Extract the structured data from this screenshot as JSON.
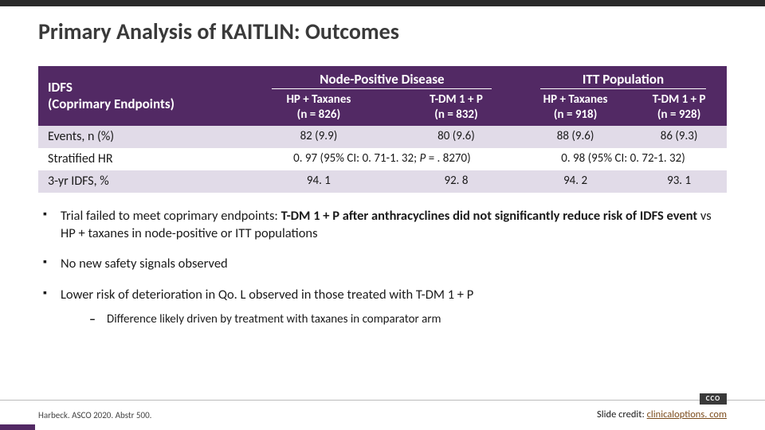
{
  "colors": {
    "header_bg": "#522964",
    "header_text": "#ffffff",
    "row_even_bg": "#e1dbe8",
    "row_odd_bg": "#ffffff",
    "top_bar": "#2a2a2a",
    "link": "#7a4a1a"
  },
  "title": "Primary Analysis of KAITLIN: Outcomes",
  "table": {
    "row_header_line1": "IDFS",
    "row_header_line2": "(Coprimary Endpoints)",
    "group1": "Node-Positive Disease",
    "group2": "ITT Population",
    "col1_line1": "HP + Taxanes",
    "col1_line2": "(n = 826)",
    "col2_line1": "T-DM 1 + P",
    "col2_line2": "(n = 832)",
    "col3_line1": "HP + Taxanes",
    "col3_line2": "(n = 918)",
    "col4_line1": "T-DM 1 + P",
    "col4_line2": "(n = 928)",
    "rows": {
      "r1": {
        "label": "Events, n (%)",
        "c1": "82 (9.9)",
        "c2": "80 (9.6)",
        "c3": "88 (9.6)",
        "c4": "86 (9.3)"
      },
      "r2": {
        "label": "Stratified HR",
        "span12_pre": "0. 97 (95% CI: 0. 71-1. 32; ",
        "span12_p": "P",
        "span12_post": " = . 8270)",
        "span34": "0. 98 (95% CI: 0. 72-1. 32)"
      },
      "r3": {
        "label": "3-yr IDFS, %",
        "c1": "94. 1",
        "c2": "92. 8",
        "c3": "94. 2",
        "c4": "93. 1"
      }
    }
  },
  "bullets": {
    "b1_pre": "Trial failed to meet coprimary endpoints: ",
    "b1_bold": "T-DM 1 + P after anthracyclines did not significantly reduce risk of IDFS event ",
    "b1_post": "vs HP + taxanes in node-positive or ITT populations",
    "b2": "No new safety signals observed",
    "b3": "Lower risk of deterioration in Qo. L observed in those treated with T-DM 1 + P",
    "b3_sub": "Difference likely driven by treatment with taxanes in comparator arm"
  },
  "footer": {
    "reference": "Harbeck. ASCO 2020. Abstr 500.",
    "credit_label": "Slide credit: ",
    "credit_link": "clinicaloptions. com",
    "logo": "CCO"
  }
}
